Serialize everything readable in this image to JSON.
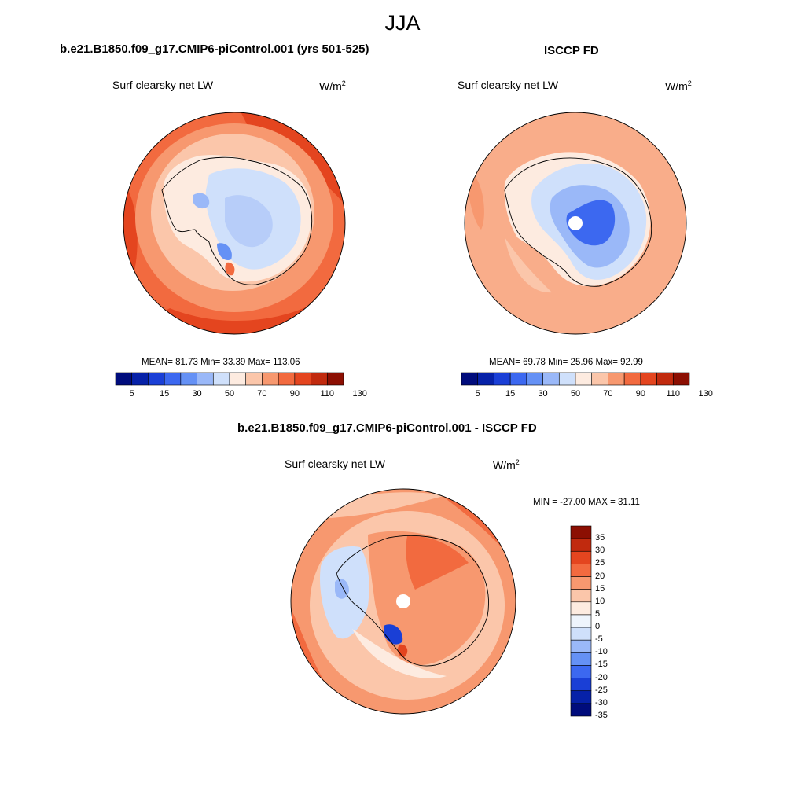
{
  "title": "JJA",
  "panels": [
    {
      "id": "model",
      "title": "b.e21.B1850.f09_g17.CMIP6-piControl.001 (yrs 501-525)",
      "variable": "Surf clearsky net LW",
      "units": "W/m",
      "units_sup": "2",
      "stats": "MEAN=  81.73  Min=  33.39  Max= 113.06",
      "colorbar_labels": [
        "5",
        "15",
        "30",
        "50",
        "70",
        "90",
        "110",
        "130"
      ]
    },
    {
      "id": "obs",
      "title": "ISCCP FD",
      "variable": "Surf clearsky net LW",
      "units": "W/m",
      "units_sup": "2",
      "stats": "MEAN=  69.78  Min=  25.96  Max=  92.99",
      "colorbar_labels": [
        "5",
        "15",
        "30",
        "50",
        "70",
        "90",
        "110",
        "130"
      ]
    },
    {
      "id": "diff",
      "title": "b.e21.B1850.f09_g17.CMIP6-piControl.001 - ISCCP FD",
      "variable": "Surf clearsky net LW",
      "units": "W/m",
      "units_sup": "2",
      "stats": "MIN = -27.00 MAX =  31.11",
      "colorbar_labels": [
        "35",
        "30",
        "25",
        "20",
        "15",
        "10",
        "5",
        "0",
        "-5",
        "-10",
        "-15",
        "-20",
        "-25",
        "-30",
        "-35"
      ]
    }
  ],
  "colors": {
    "abs_scale": [
      "#000c7c",
      "#0621a8",
      "#1a3fd6",
      "#3c68f0",
      "#6591f5",
      "#9ab8f8",
      "#cfe0fb",
      "#fdebe0",
      "#fbc6aa",
      "#f7986f",
      "#f26a3f",
      "#e4451f",
      "#c12a0e",
      "#8c0f02"
    ],
    "diff_scale": [
      "#000c7c",
      "#0621a8",
      "#1a3fd6",
      "#3c68f0",
      "#6591f5",
      "#9ab8f8",
      "#cfe0fb",
      "#eef4fc",
      "#fdebe0",
      "#fbc6aa",
      "#f7986f",
      "#f26a3f",
      "#e4451f",
      "#c12a0e",
      "#8c0f02"
    ]
  }
}
